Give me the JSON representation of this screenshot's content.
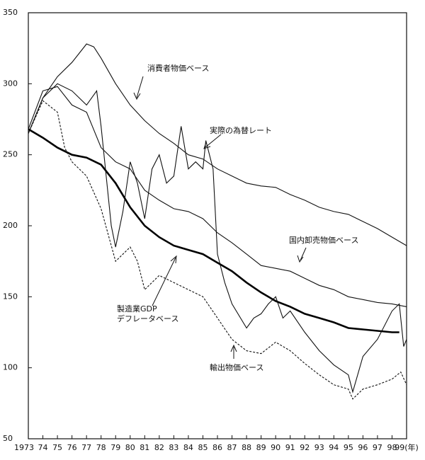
{
  "chart_data": {
    "type": "line",
    "ylim": [
      50,
      350
    ],
    "yticks": [
      50,
      100,
      150,
      200,
      250,
      300,
      350
    ],
    "xlim": [
      1973,
      1999
    ],
    "xticks": [
      {
        "value": 1973,
        "label": "1973"
      },
      {
        "value": 1974,
        "label": "74"
      },
      {
        "value": 1975,
        "label": "75"
      },
      {
        "value": 1976,
        "label": "76"
      },
      {
        "value": 1977,
        "label": "77"
      },
      {
        "value": 1978,
        "label": "78"
      },
      {
        "value": 1979,
        "label": "79"
      },
      {
        "value": 1980,
        "label": "80"
      },
      {
        "value": 1981,
        "label": "81"
      },
      {
        "value": 1982,
        "label": "82"
      },
      {
        "value": 1983,
        "label": "83"
      },
      {
        "value": 1984,
        "label": "84"
      },
      {
        "value": 1985,
        "label": "85"
      },
      {
        "value": 1986,
        "label": "86"
      },
      {
        "value": 1987,
        "label": "87"
      },
      {
        "value": 1988,
        "label": "88"
      },
      {
        "value": 1989,
        "label": "89"
      },
      {
        "value": 1990,
        "label": "90"
      },
      {
        "value": 1991,
        "label": "91"
      },
      {
        "value": 1992,
        "label": "92"
      },
      {
        "value": 1993,
        "label": "93"
      },
      {
        "value": 1994,
        "label": "94"
      },
      {
        "value": 1995,
        "label": "95"
      },
      {
        "value": 1996,
        "label": "96"
      },
      {
        "value": 1997,
        "label": "97"
      },
      {
        "value": 1998,
        "label": "98"
      },
      {
        "value": 1999,
        "label": "99(年)"
      }
    ],
    "series": [
      {
        "name": "消費者物価ベース",
        "color": "#111111",
        "x": [
          1973,
          1974,
          1975,
          1976,
          1977,
          1977.5,
          1978,
          1979,
          1980,
          1981,
          1982,
          1983,
          1984,
          1985,
          1986,
          1987,
          1988,
          1989,
          1990,
          1991,
          1992,
          1993,
          1994,
          1995,
          1996,
          1997,
          1998,
          1999
        ],
        "values": [
          265,
          290,
          305,
          315,
          328,
          326,
          318,
          300,
          285,
          274,
          265,
          258,
          250,
          247,
          240,
          235,
          230,
          228,
          227,
          222,
          218,
          213,
          210,
          208,
          203,
          198,
          192,
          186
        ]
      },
      {
        "name": "実際の為替レート",
        "color": "#111111",
        "x": [
          1973,
          1974,
          1975,
          1976,
          1977,
          1977.7,
          1978,
          1978.7,
          1979,
          1979.5,
          1980,
          1980.5,
          1981,
          1981.5,
          1982,
          1982.5,
          1983,
          1983.5,
          1984,
          1984.5,
          1985,
          1985.2,
          1985.7,
          1986,
          1986.5,
          1987,
          1988,
          1988.5,
          1989,
          1989.5,
          1990,
          1990.5,
          1991,
          1992,
          1993,
          1994,
          1995,
          1995.3,
          1996,
          1997,
          1998,
          1998.5,
          1998.8,
          1999
        ],
        "values": [
          265,
          290,
          300,
          295,
          285,
          295,
          270,
          200,
          185,
          210,
          245,
          230,
          205,
          240,
          250,
          230,
          235,
          270,
          240,
          245,
          240,
          260,
          240,
          180,
          160,
          145,
          128,
          135,
          138,
          145,
          150,
          135,
          140,
          125,
          112,
          102,
          95,
          83,
          108,
          120,
          140,
          145,
          115,
          120
        ]
      },
      {
        "name": "国内卸売物価ベース",
        "color": "#111111",
        "x": [
          1973,
          1974,
          1975,
          1976,
          1977,
          1978,
          1979,
          1980,
          1981,
          1982,
          1983,
          1984,
          1985,
          1986,
          1987,
          1988,
          1989,
          1990,
          1991,
          1992,
          1993,
          1994,
          1995,
          1996,
          1997,
          1998,
          1999
        ],
        "values": [
          268,
          295,
          298,
          285,
          280,
          255,
          245,
          240,
          225,
          218,
          212,
          210,
          205,
          195,
          188,
          180,
          172,
          170,
          168,
          163,
          158,
          155,
          150,
          148,
          146,
          145,
          143
        ]
      },
      {
        "name": "製造業GDP\nデフレータベース",
        "color": "#000000",
        "x": [
          1973,
          1974,
          1975,
          1976,
          1977,
          1978,
          1979,
          1980,
          1981,
          1982,
          1983,
          1984,
          1985,
          1986,
          1987,
          1988,
          1989,
          1990,
          1991,
          1992,
          1993,
          1994,
          1995,
          1996,
          1997,
          1998,
          1998.5
        ],
        "values": [
          268,
          262,
          255,
          250,
          248,
          243,
          230,
          213,
          200,
          192,
          186,
          183,
          180,
          174,
          168,
          160,
          153,
          147,
          143,
          138,
          135,
          132,
          128,
          127,
          126,
          125,
          125
        ]
      },
      {
        "name": "輸出物価ベース",
        "color": "#111111",
        "dashed": true,
        "x": [
          1973,
          1974,
          1975,
          1975.5,
          1976,
          1977,
          1978,
          1979,
          1980,
          1980.5,
          1981,
          1982,
          1983,
          1984,
          1985,
          1986,
          1987,
          1988,
          1989,
          1990,
          1991,
          1992,
          1993,
          1994,
          1995,
          1995.3,
          1996,
          1997,
          1998,
          1998.6,
          1999
        ],
        "values": [
          265,
          288,
          280,
          255,
          245,
          235,
          212,
          175,
          185,
          175,
          155,
          165,
          160,
          155,
          150,
          135,
          120,
          112,
          110,
          118,
          112,
          103,
          95,
          88,
          85,
          78,
          85,
          88,
          92,
          97,
          88
        ]
      }
    ]
  }
}
